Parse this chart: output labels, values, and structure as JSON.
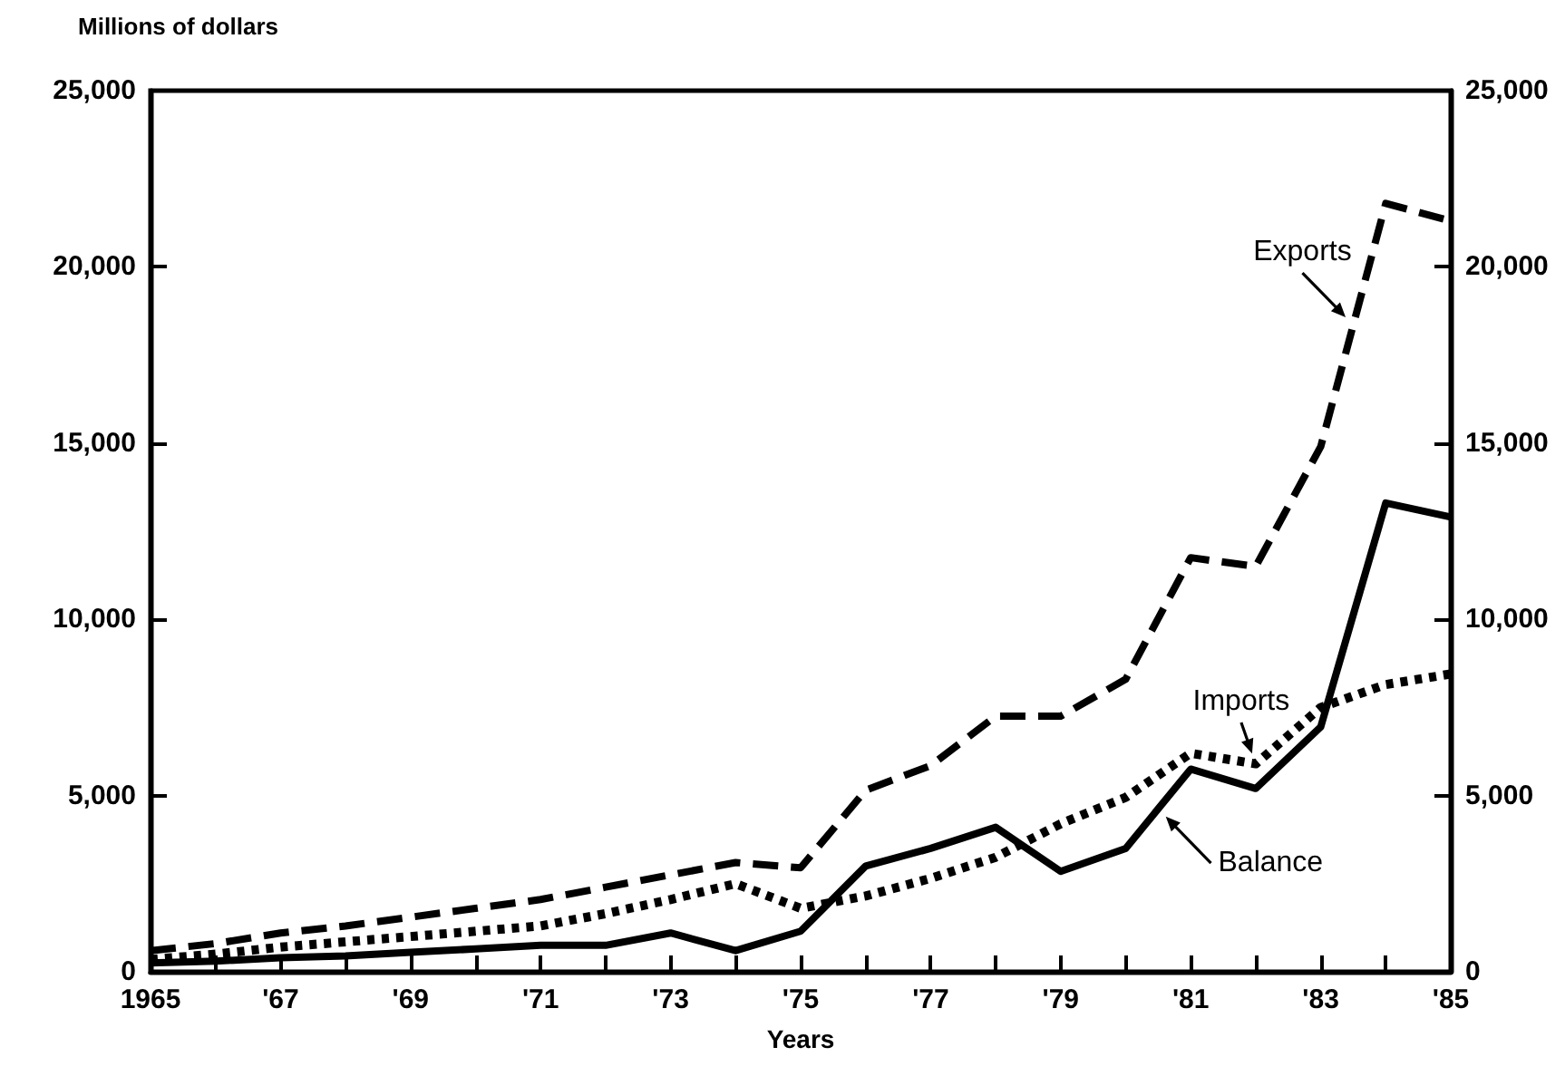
{
  "chart_data": {
    "type": "line",
    "ylabel": "Millions of dollars",
    "xlabel": "Years",
    "x": [
      1965,
      1966,
      1967,
      1968,
      1969,
      1970,
      1971,
      1972,
      1973,
      1974,
      1975,
      1976,
      1977,
      1978,
      1979,
      1980,
      1981,
      1982,
      1983,
      1984,
      1985
    ],
    "series": [
      {
        "name": "Exports",
        "color": "#000000",
        "line_style": "dashed",
        "values": [
          600,
          800,
          1100,
          1300,
          1550,
          1800,
          2050,
          2400,
          2750,
          3100,
          2950,
          5150,
          5850,
          7250,
          7250,
          8300,
          11750,
          11500,
          14900,
          21800,
          21300
        ]
      },
      {
        "name": "Imports",
        "color": "#000000",
        "line_style": "dotted",
        "values": [
          350,
          500,
          700,
          850,
          1000,
          1150,
          1300,
          1650,
          2050,
          2500,
          1800,
          2150,
          2650,
          3250,
          4200,
          4950,
          6200,
          5900,
          7500,
          8150,
          8450
        ]
      },
      {
        "name": "Balance",
        "color": "#000000",
        "line_style": "solid",
        "values": [
          250,
          300,
          400,
          450,
          550,
          650,
          750,
          750,
          1100,
          600,
          1150,
          3000,
          3500,
          4100,
          2850,
          3500,
          5750,
          5200,
          6950,
          13300,
          12900
        ]
      }
    ],
    "xlim": [
      1965,
      1985
    ],
    "xticks": [
      {
        "value": 1965,
        "label": "1965"
      },
      {
        "value": 1966,
        "label": null
      },
      {
        "value": 1967,
        "label": "'67"
      },
      {
        "value": 1968,
        "label": null
      },
      {
        "value": 1969,
        "label": "'69"
      },
      {
        "value": 1970,
        "label": null
      },
      {
        "value": 1971,
        "label": "'71"
      },
      {
        "value": 1972,
        "label": null
      },
      {
        "value": 1973,
        "label": "'73"
      },
      {
        "value": 1974,
        "label": null
      },
      {
        "value": 1975,
        "label": "'75"
      },
      {
        "value": 1976,
        "label": null
      },
      {
        "value": 1977,
        "label": "'77"
      },
      {
        "value": 1978,
        "label": null
      },
      {
        "value": 1979,
        "label": "'79"
      },
      {
        "value": 1980,
        "label": null
      },
      {
        "value": 1981,
        "label": "'81"
      },
      {
        "value": 1982,
        "label": null
      },
      {
        "value": 1983,
        "label": "'83"
      },
      {
        "value": 1984,
        "label": null
      },
      {
        "value": 1985,
        "label": "'85"
      }
    ],
    "ylim": [
      0,
      25000
    ],
    "yticks": [
      {
        "value": 0,
        "label": "0"
      },
      {
        "value": 5000,
        "label": "5,000"
      },
      {
        "value": 10000,
        "label": "10,000"
      },
      {
        "value": 15000,
        "label": "15,000"
      },
      {
        "value": 20000,
        "label": "20,000"
      },
      {
        "value": 25000,
        "label": "25,000"
      }
    ],
    "y2lim": [
      0,
      25000
    ],
    "y2ticks": [
      {
        "value": 0,
        "label": "0"
      },
      {
        "value": 5000,
        "label": "5,000"
      },
      {
        "value": 10000,
        "label": "10,000"
      },
      {
        "value": 15000,
        "label": "15,000"
      },
      {
        "value": 20000,
        "label": "20,000"
      },
      {
        "value": 25000,
        "label": "25,000"
      }
    ],
    "grid": false,
    "legend": false,
    "marker": "none"
  }
}
